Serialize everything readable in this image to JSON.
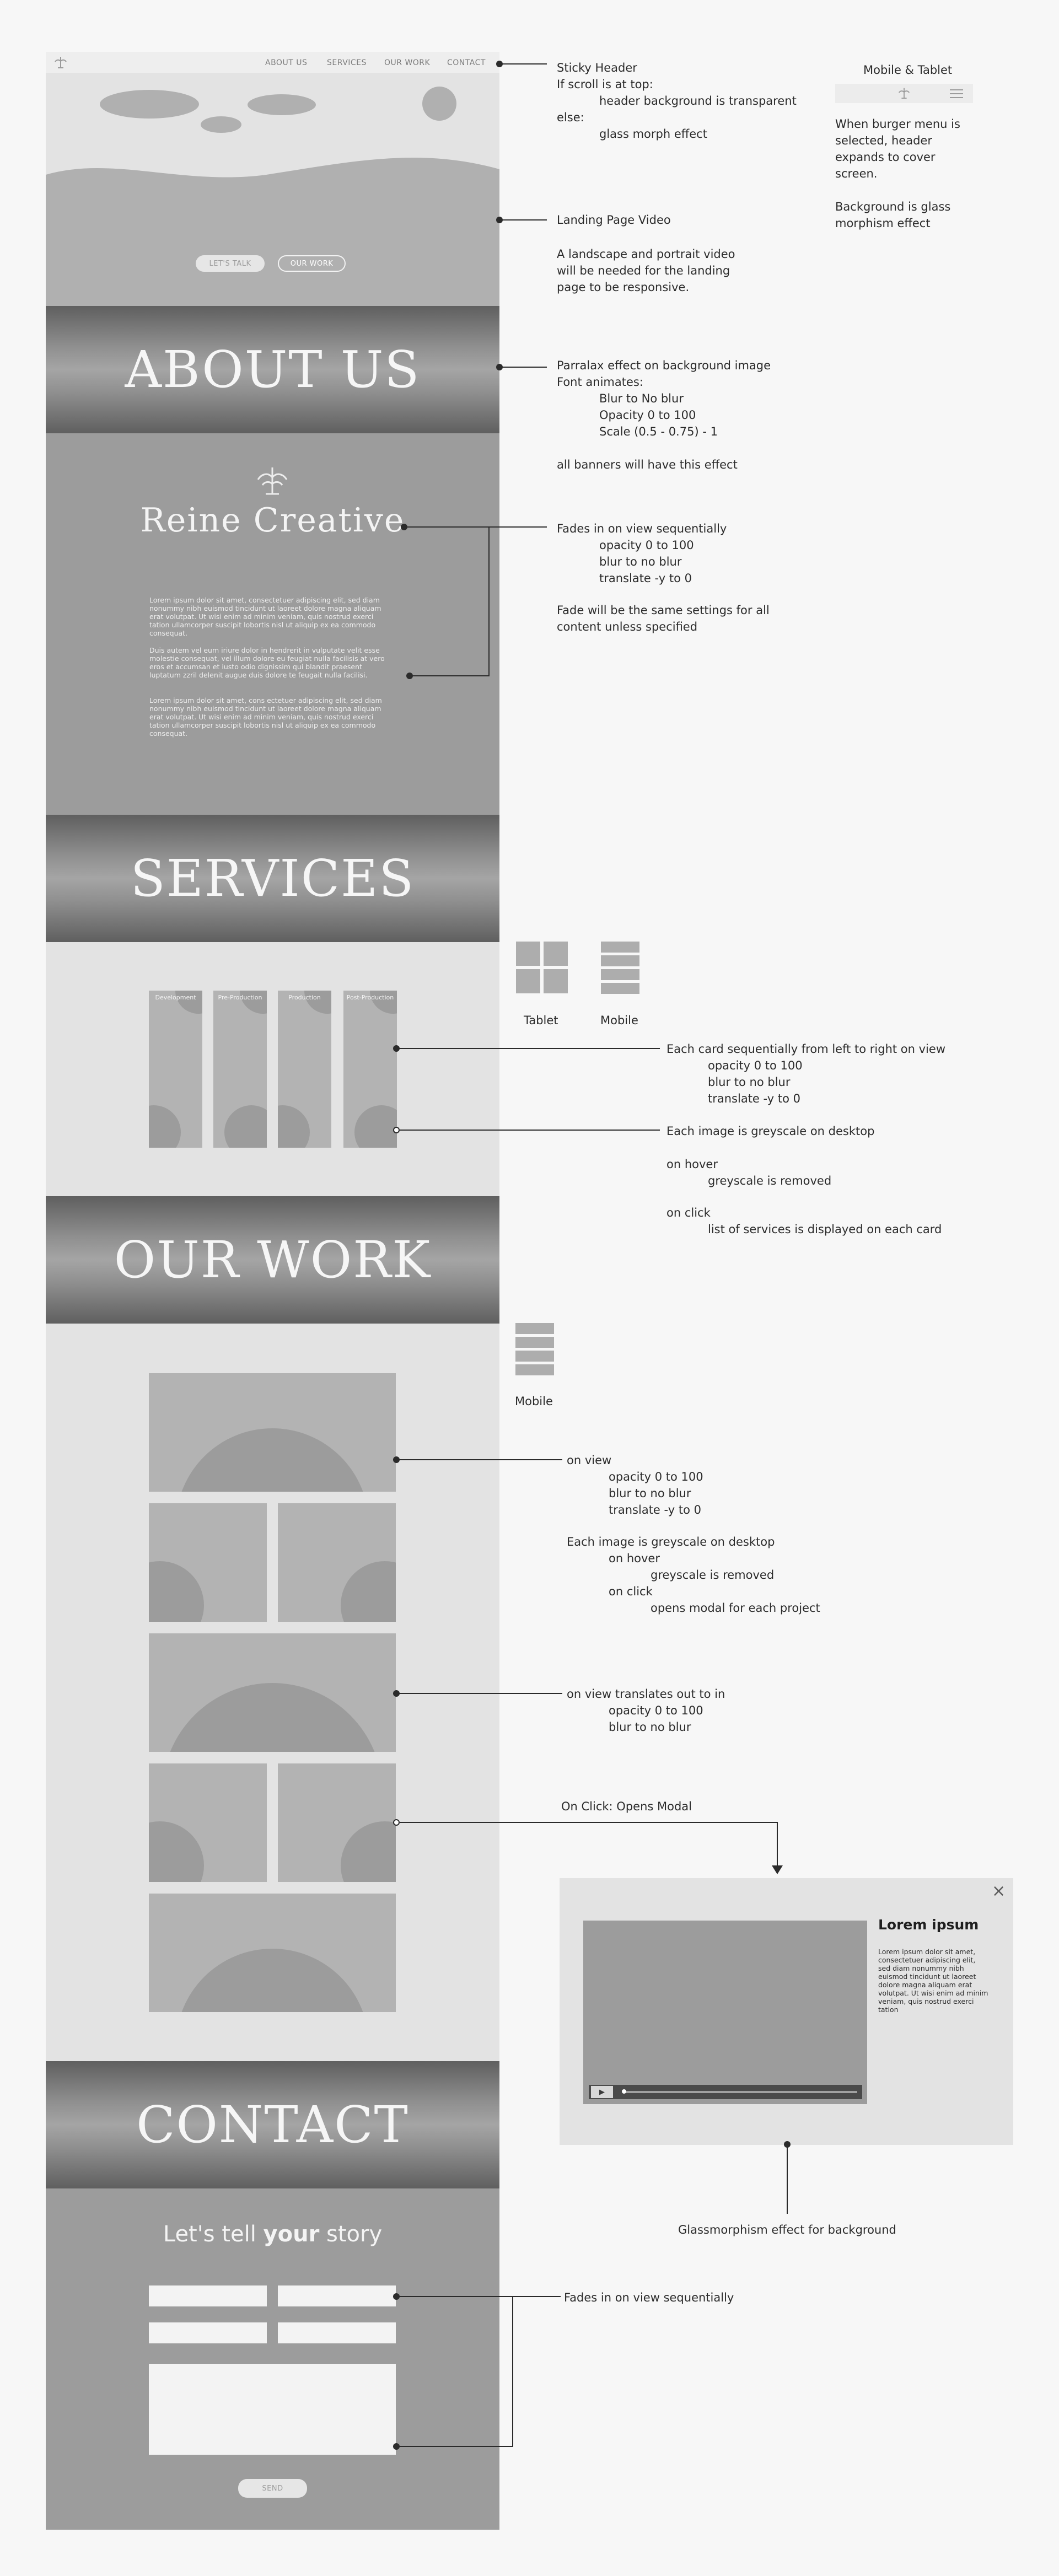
{
  "nav": {
    "links": [
      "ABOUT US",
      "SERVICES",
      "OUR WORK",
      "CONTACT"
    ]
  },
  "hero": {
    "talk_button": "LET'S TALK",
    "work_button": "OUR WORK"
  },
  "about": {
    "banner": "ABOUT US",
    "brand": "Reine Creative",
    "paragraphs": [
      "Lorem ipsum dolor sit amet, consectetuer adipiscing elit, sed diam nonummy nibh euismod tincidunt ut laoreet dolore magna aliquam erat volutpat. Ut wisi enim ad minim veniam, quis nostrud exerci tation ullamcorper suscipit lobortis nisl ut aliquip ex ea commodo consequat.",
      "Duis autem vel eum iriure dolor in hendrerit in vulputate velit esse molestie consequat, vel illum dolore eu feugiat nulla facilisis at vero eros et accumsan et iusto odio dignissim qui blandit praesent luptatum zzril delenit augue duis dolore te feugait nulla facilisi.",
      "Lorem ipsum dolor sit amet, cons ectetuer adipiscing elit, sed diam nonummy nibh euismod tincidunt ut laoreet dolore magna aliquam erat volutpat. Ut wisi enim ad minim veniam, quis nostrud exerci tation ullamcorper suscipit lobortis nisl ut aliquip ex ea commodo consequat."
    ]
  },
  "services": {
    "banner": "SERVICES",
    "cards": [
      "Development",
      "Pre-Production",
      "Production",
      "Post-Production"
    ]
  },
  "work": {
    "banner": "OUR WORK"
  },
  "contact": {
    "banner": "CONTACT",
    "heading_pre": "Let's tell ",
    "heading_bold": "your",
    "heading_post": " story",
    "send": "SEND"
  },
  "modal": {
    "title": "Lorem ipsum",
    "body": "Lorem ipsum dolor sit amet, consectetuer adipiscing elit, sed diam nonummy nibh euismod tincidunt ut laoreet dolore magna aliquam erat volutpat. Ut wisi enim ad minim veniam, quis nostrud exerci tation",
    "close": "×",
    "play": "▶"
  },
  "annotations": {
    "header": [
      "Sticky Header",
      "If scroll is at top:",
      "header background is transparent",
      "else:",
      "glass morph effect"
    ],
    "mobile_tablet": [
      "Mobile & Tablet",
      "When burger menu is",
      "selected, header",
      "expands to cover",
      "screen.",
      "Background is glass",
      "morphism effect"
    ],
    "video": [
      "Landing Page Video",
      "A landscape and portrait video",
      "will be needed for the landing",
      "page to be responsive."
    ],
    "parallax": [
      "Parralax effect on background image",
      "Font animates:",
      "Blur to No blur",
      "Opacity 0 to 100",
      "Scale (0.5 - 0.75) - 1",
      "all banners will have this effect"
    ],
    "fades": [
      "Fades in on view sequentially",
      "opacity 0 to 100",
      "blur to no blur",
      "translate -y to 0",
      "Fade will be the same settings for all",
      "content unless specified"
    ],
    "devices": [
      "Tablet",
      "Mobile"
    ],
    "cards": [
      "Each card sequentially from left to right on view",
      "opacity 0 to 100",
      "blur to no blur",
      "translate -y to 0"
    ],
    "greyscale": [
      "Each image is greyscale on desktop",
      "on hover",
      "greyscale is removed",
      "on click",
      "list of services is displayed on each card"
    ],
    "work_mobile": "Mobile",
    "work_view": [
      "on view",
      "opacity 0 to 100",
      "blur to no blur",
      "translate -y to 0",
      "Each image is greyscale on desktop",
      "on hover",
      "greyscale is removed",
      "on click",
      "opens modal for each project"
    ],
    "translate_in": [
      "on view translates out to in",
      "opacity 0 to 100",
      "blur to no blur"
    ],
    "modal_click": "On Click: Opens Modal",
    "glass": "Glassmorphism effect for background",
    "contact_fade": "Fades in on view sequentially"
  }
}
